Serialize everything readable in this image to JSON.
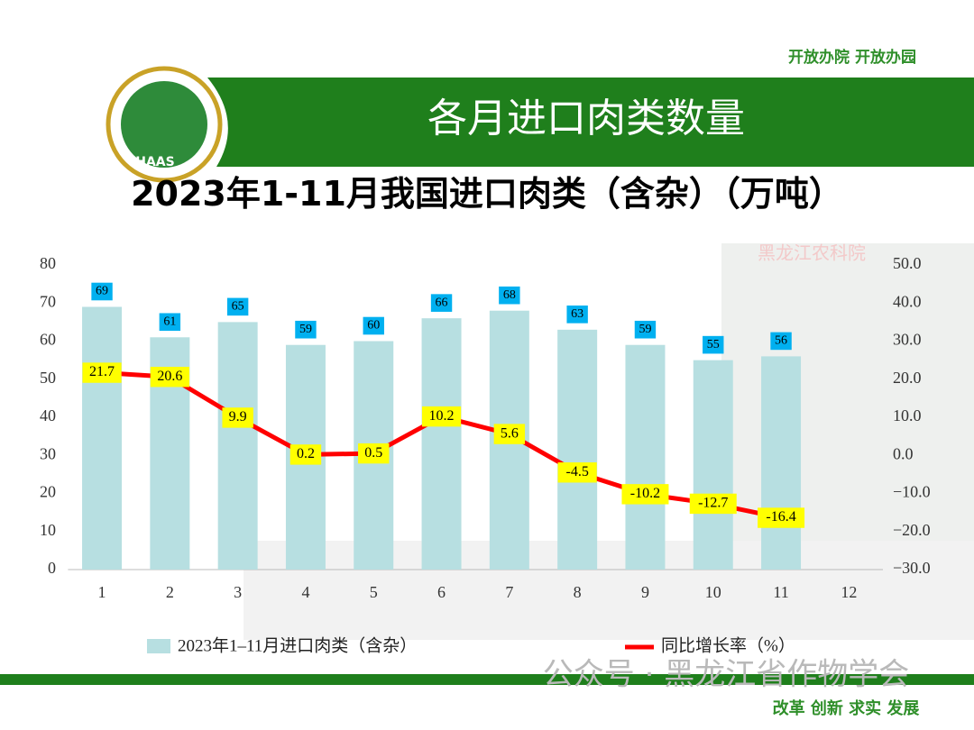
{
  "slide": {
    "title": "各月进口肉类数量",
    "logo": "HAAS",
    "slogan_top": "开放办院 开放办园",
    "building_sign": "黑龙江农科院",
    "watermark": "公众号 · 黑龙江省作物学会",
    "slogan_bottom": "改革 创新 求实 发展"
  },
  "chart_data": {
    "type": "bar",
    "title": "2023年1-11月我国进口肉类（含杂）（万吨）",
    "categories": [
      "1",
      "2",
      "3",
      "4",
      "5",
      "6",
      "7",
      "8",
      "9",
      "10",
      "11",
      "12"
    ],
    "series": [
      {
        "name": "2023年1–11月进口肉类（含杂）",
        "type": "bar",
        "color": "#b7dfe1",
        "label_color": "#00b0f0",
        "values": [
          69,
          61,
          65,
          59,
          60,
          66,
          68,
          63,
          59,
          55,
          56,
          null
        ]
      },
      {
        "name": "同比增长率（%）",
        "type": "line",
        "axis": "y2",
        "color": "#ff0000",
        "label_color": "#ffff00",
        "values": [
          21.7,
          20.6,
          9.9,
          0.2,
          0.5,
          10.2,
          5.6,
          -4.5,
          -10.2,
          -12.7,
          -16.4,
          null
        ]
      }
    ],
    "ylim": [
      0,
      80
    ],
    "yticks": [
      0,
      10,
      20,
      30,
      40,
      50,
      60,
      70,
      80
    ],
    "y2lim": [
      -30,
      50
    ],
    "y2ticks": [
      {
        "value": -30,
        "label": "−30.0"
      },
      {
        "value": -20,
        "label": "−20.0"
      },
      {
        "value": -10,
        "label": "−10.0"
      },
      {
        "value": 0,
        "label": "0.0"
      },
      {
        "value": 10,
        "label": "10.0"
      },
      {
        "value": 20,
        "label": "20.0"
      },
      {
        "value": 30,
        "label": "30.0"
      },
      {
        "value": 40,
        "label": "40.0"
      },
      {
        "value": 50,
        "label": "50.0"
      }
    ]
  }
}
